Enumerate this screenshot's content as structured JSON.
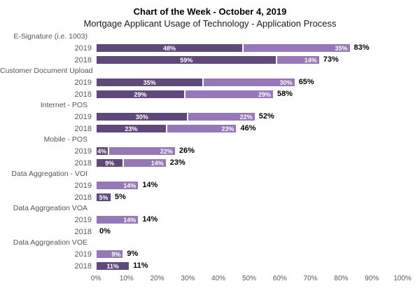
{
  "header": {
    "title": "Chart of the Week - October 4, 2019",
    "subtitle": "Mortgage Applicant Usage of Technology - Application Process"
  },
  "colors": {
    "dark_purple": "#5f497a",
    "light_purple": "#9678b8",
    "axis_text": "#595959",
    "total_text": "#000000"
  },
  "chart_data": {
    "type": "bar",
    "orientation": "horizontal",
    "stacked": true,
    "title": "Chart of the Week - October 4, 2019",
    "subtitle": "Mortgage Applicant Usage of Technology - Application Process",
    "xlabel": "",
    "ylabel": "",
    "xlim": [
      0,
      100
    ],
    "grid": false,
    "legend": "none",
    "x_tick_labels": [
      "0%",
      "10%",
      "20%",
      "30%",
      "40%",
      "50%",
      "60%",
      "70%",
      "80%",
      "90%",
      "100%"
    ],
    "groups": [
      {
        "category": "E-Signature (i.e. 1003)",
        "rows": [
          {
            "year": "2019",
            "segments": [
              {
                "value": 48,
                "label": "48%",
                "shade": "dark"
              },
              {
                "value": 35,
                "label": "35%",
                "shade": "light"
              }
            ],
            "total_value": 83,
            "total_label": "83%"
          },
          {
            "year": "2018",
            "segments": [
              {
                "value": 59,
                "label": "59%",
                "shade": "dark"
              },
              {
                "value": 14,
                "label": "14%",
                "shade": "light"
              }
            ],
            "total_value": 73,
            "total_label": "73%"
          }
        ]
      },
      {
        "category": "Customer Document Upload",
        "rows": [
          {
            "year": "2019",
            "segments": [
              {
                "value": 35,
                "label": "35%",
                "shade": "dark"
              },
              {
                "value": 30,
                "label": "30%",
                "shade": "light"
              }
            ],
            "total_value": 65,
            "total_label": "65%"
          },
          {
            "year": "2018",
            "segments": [
              {
                "value": 29,
                "label": "29%",
                "shade": "dark"
              },
              {
                "value": 29,
                "label": "29%",
                "shade": "light"
              }
            ],
            "total_value": 58,
            "total_label": "58%"
          }
        ]
      },
      {
        "category": "Internet - POS",
        "rows": [
          {
            "year": "2019",
            "segments": [
              {
                "value": 30,
                "label": "30%",
                "shade": "dark"
              },
              {
                "value": 22,
                "label": "22%",
                "shade": "light"
              }
            ],
            "total_value": 52,
            "total_label": "52%"
          },
          {
            "year": "2018",
            "segments": [
              {
                "value": 23,
                "label": "23%",
                "shade": "dark"
              },
              {
                "value": 23,
                "label": "23%",
                "shade": "light"
              }
            ],
            "total_value": 46,
            "total_label": "46%"
          }
        ]
      },
      {
        "category": "Mobile - POS",
        "rows": [
          {
            "year": "2019",
            "segments": [
              {
                "value": 4,
                "label": "4%",
                "shade": "dark"
              },
              {
                "value": 22,
                "label": "22%",
                "shade": "light"
              }
            ],
            "total_value": 26,
            "total_label": "26%"
          },
          {
            "year": "2018",
            "segments": [
              {
                "value": 9,
                "label": "9%",
                "shade": "dark"
              },
              {
                "value": 14,
                "label": "14%",
                "shade": "light"
              }
            ],
            "total_value": 23,
            "total_label": "23%"
          }
        ]
      },
      {
        "category": "Data Aggregation - VOI",
        "rows": [
          {
            "year": "2019",
            "segments": [
              {
                "value": 14,
                "label": "14%",
                "shade": "light"
              }
            ],
            "total_value": 14,
            "total_label": "14%"
          },
          {
            "year": "2018",
            "segments": [
              {
                "value": 5,
                "label": "5%",
                "shade": "dark"
              }
            ],
            "total_value": 5,
            "total_label": "5%"
          }
        ]
      },
      {
        "category": "Data Aggrgeation VOA",
        "rows": [
          {
            "year": "2019",
            "segments": [
              {
                "value": 14,
                "label": "14%",
                "shade": "light"
              }
            ],
            "total_value": 14,
            "total_label": "14%"
          },
          {
            "year": "2018",
            "segments": [],
            "total_value": 0,
            "total_label": "0%"
          }
        ]
      },
      {
        "category": "Data Aggrgeation VOE",
        "rows": [
          {
            "year": "2019",
            "segments": [
              {
                "value": 9,
                "label": "9%",
                "shade": "light"
              }
            ],
            "total_value": 9,
            "total_label": "9%"
          },
          {
            "year": "2018",
            "segments": [
              {
                "value": 11,
                "label": "11%",
                "shade": "dark"
              }
            ],
            "total_value": 11,
            "total_label": "11%"
          }
        ]
      }
    ]
  }
}
